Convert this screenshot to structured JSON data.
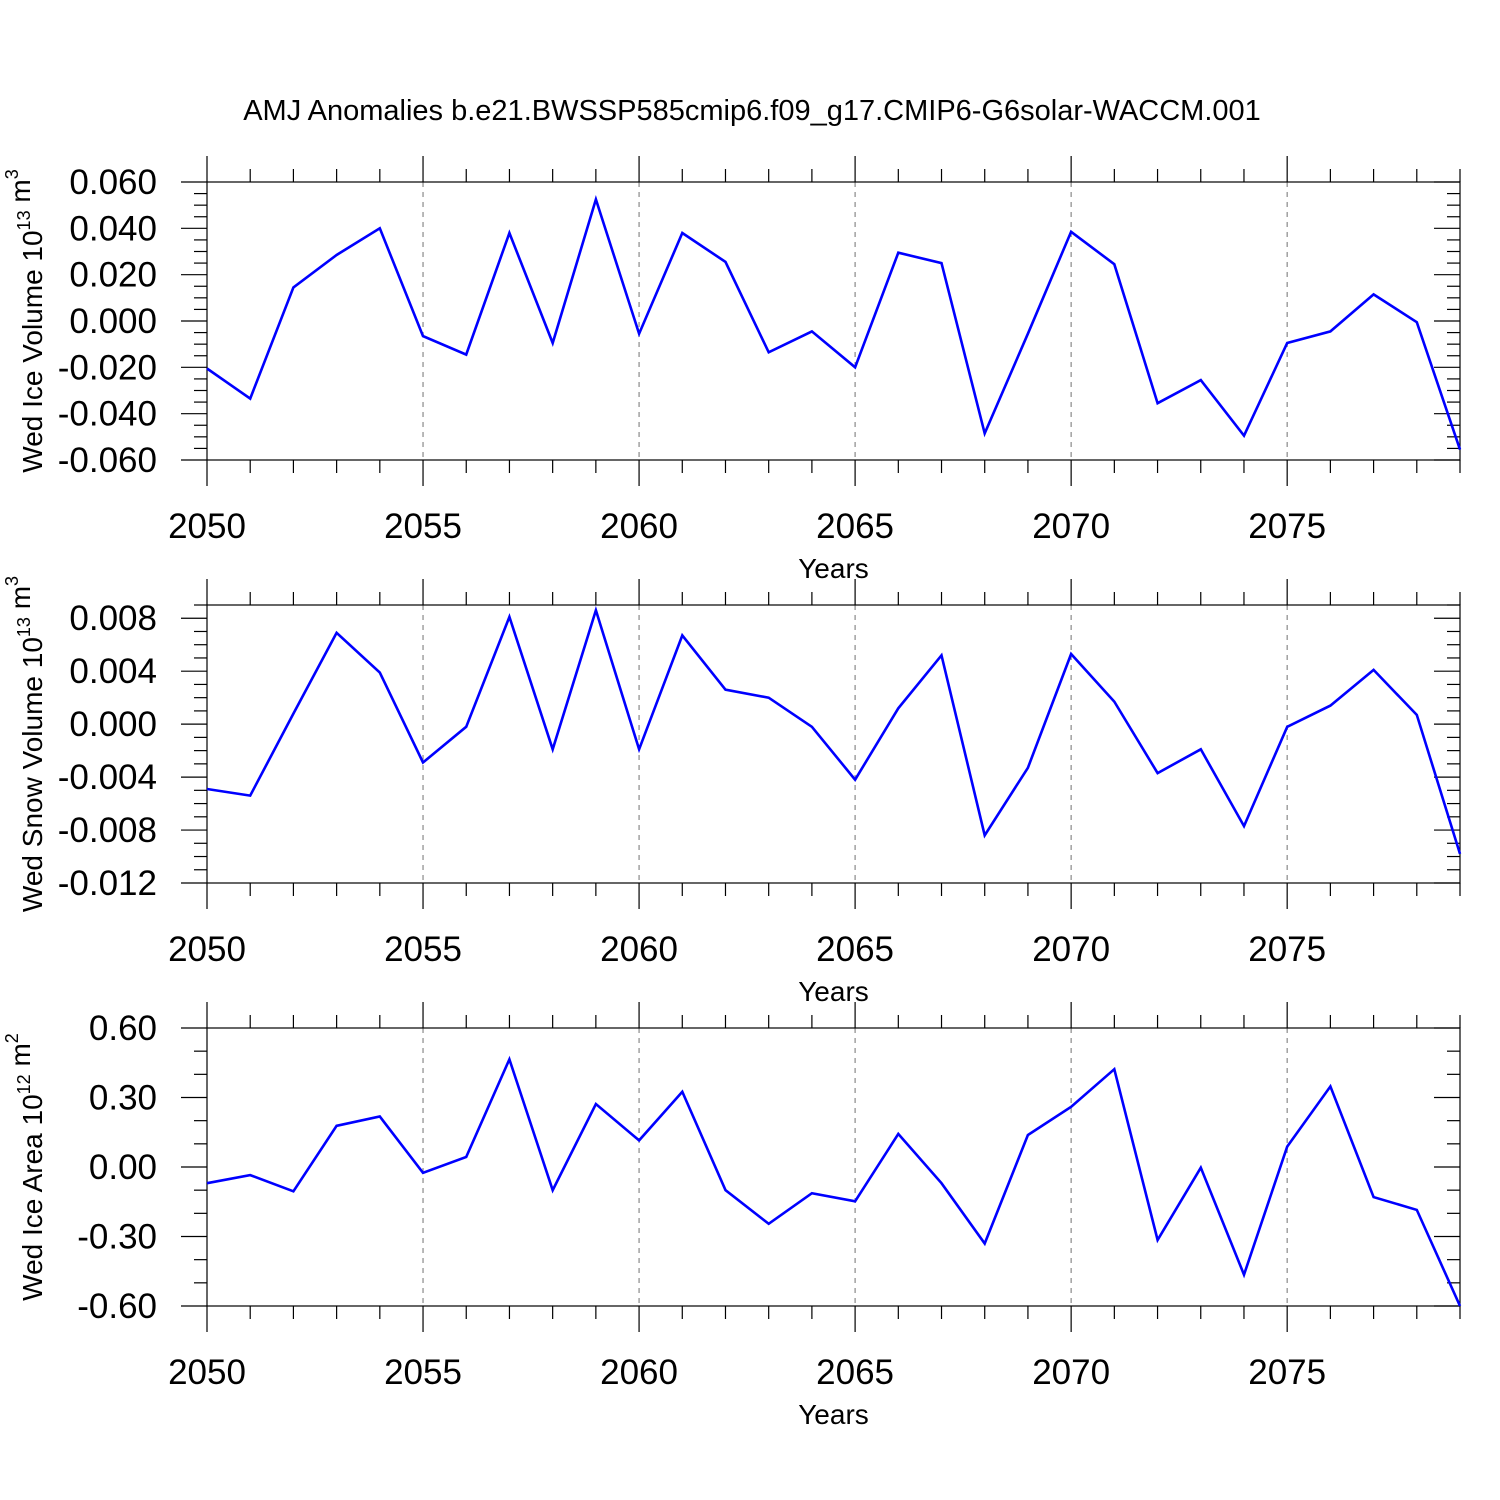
{
  "page_title": "AMJ Anomalies b.e21.BWSSP585cmip6.f09_g17.CMIP6-G6solar-WACCM.001",
  "colors": {
    "series": "#0000ff",
    "axes": "#000000",
    "grid": "#8a8a8a"
  },
  "chart_data": [
    {
      "type": "line",
      "title": "AMJ Anomalies b.e21.BWSSP585cmip6.f09_g17.CMIP6-G6solar-WACCM.001",
      "ylabel": "Wed Ice Volume 10",
      "ylabel_exp": "13",
      "ylabel_unit": " m",
      "ylabel_unit_exp": "3",
      "xlabel": "Years",
      "xlim": [
        2050,
        2079
      ],
      "ylim": [
        -0.06,
        0.06
      ],
      "xticks": [
        2050,
        2055,
        2060,
        2065,
        2070,
        2075
      ],
      "xtick_labels": [
        "2050",
        "2055",
        "2060",
        "2065",
        "2070",
        "2075"
      ],
      "yticks": [
        -0.06,
        -0.04,
        -0.02,
        0.0,
        0.02,
        0.04,
        0.06
      ],
      "ytick_labels": [
        "-0.060",
        "-0.040",
        "-0.020",
        "0.000",
        "0.020",
        "0.040",
        "0.060"
      ],
      "x_grid": "dashed vertical at major x ticks",
      "x": [
        2050,
        2051,
        2052,
        2053,
        2054,
        2055,
        2056,
        2057,
        2058,
        2059,
        2060,
        2061,
        2062,
        2063,
        2064,
        2065,
        2066,
        2067,
        2068,
        2069,
        2070,
        2071,
        2072,
        2073,
        2074,
        2075,
        2076,
        2077,
        2078,
        2079
      ],
      "values": [
        -0.0205,
        -0.0335,
        0.0145,
        0.0285,
        0.04,
        -0.0065,
        -0.0145,
        0.038,
        -0.0095,
        0.0525,
        -0.0055,
        0.038,
        0.0255,
        -0.0135,
        -0.0045,
        -0.02,
        0.0295,
        0.025,
        -0.0485,
        -0.0055,
        0.0385,
        0.0245,
        -0.0355,
        -0.0255,
        -0.0495,
        -0.0095,
        -0.0045,
        0.0115,
        -0.0005,
        -0.0555
      ]
    },
    {
      "type": "line",
      "ylabel": "Wed Snow Volume 10",
      "ylabel_exp": "13",
      "ylabel_unit": " m",
      "ylabel_unit_exp": "3",
      "xlabel": "Years",
      "xlim": [
        2050,
        2079
      ],
      "ylim": [
        -0.012,
        0.009
      ],
      "xticks": [
        2050,
        2055,
        2060,
        2065,
        2070,
        2075
      ],
      "xtick_labels": [
        "2050",
        "2055",
        "2060",
        "2065",
        "2070",
        "2075"
      ],
      "yticks": [
        -0.012,
        -0.008,
        -0.004,
        0.0,
        0.004,
        0.008
      ],
      "ytick_labels": [
        "-0.012",
        "-0.008",
        "-0.004",
        "0.000",
        "0.004",
        "0.008"
      ],
      "x_grid": "dashed vertical at major x ticks",
      "x": [
        2050,
        2051,
        2052,
        2053,
        2054,
        2055,
        2056,
        2057,
        2058,
        2059,
        2060,
        2061,
        2062,
        2063,
        2064,
        2065,
        2066,
        2067,
        2068,
        2069,
        2070,
        2071,
        2072,
        2073,
        2074,
        2075,
        2076,
        2077,
        2078,
        2079
      ],
      "values": [
        -0.0049,
        -0.0054,
        0.0008,
        0.0069,
        0.0039,
        -0.0029,
        -0.0002,
        0.0081,
        -0.0019,
        0.0086,
        -0.0019,
        0.0067,
        0.0026,
        0.002,
        -0.0002,
        -0.0042,
        0.0012,
        0.0052,
        -0.0084,
        -0.0033,
        0.0053,
        0.0017,
        -0.0037,
        -0.0019,
        -0.0077,
        -0.0002,
        0.0014,
        0.0041,
        0.0007,
        -0.0098
      ]
    },
    {
      "type": "line",
      "ylabel": "Wed Ice Area 10",
      "ylabel_exp": "12",
      "ylabel_unit": " m",
      "ylabel_unit_exp": "2",
      "xlabel": "Years",
      "xlim": [
        2050,
        2079
      ],
      "ylim": [
        -0.6,
        0.6
      ],
      "xticks": [
        2050,
        2055,
        2060,
        2065,
        2070,
        2075
      ],
      "xtick_labels": [
        "2050",
        "2055",
        "2060",
        "2065",
        "2070",
        "2075"
      ],
      "yticks": [
        -0.6,
        -0.3,
        0.0,
        0.3,
        0.6
      ],
      "ytick_labels": [
        "-0.60",
        "-0.30",
        "0.00",
        "0.30",
        "0.60"
      ],
      "x_grid": "dashed vertical at major x ticks",
      "x": [
        2050,
        2051,
        2052,
        2053,
        2054,
        2055,
        2056,
        2057,
        2058,
        2059,
        2060,
        2061,
        2062,
        2063,
        2064,
        2065,
        2066,
        2067,
        2068,
        2069,
        2070,
        2071,
        2072,
        2073,
        2074,
        2075,
        2076,
        2077,
        2078,
        2079
      ],
      "values": [
        -0.07,
        -0.035,
        -0.105,
        0.178,
        0.218,
        -0.025,
        0.043,
        0.465,
        -0.1,
        0.272,
        0.115,
        0.325,
        -0.1,
        -0.245,
        -0.113,
        -0.148,
        0.143,
        -0.07,
        -0.33,
        0.138,
        0.26,
        0.422,
        -0.315,
        -0.003,
        -0.465,
        0.088,
        0.348,
        -0.13,
        -0.185,
        -0.6
      ]
    }
  ]
}
